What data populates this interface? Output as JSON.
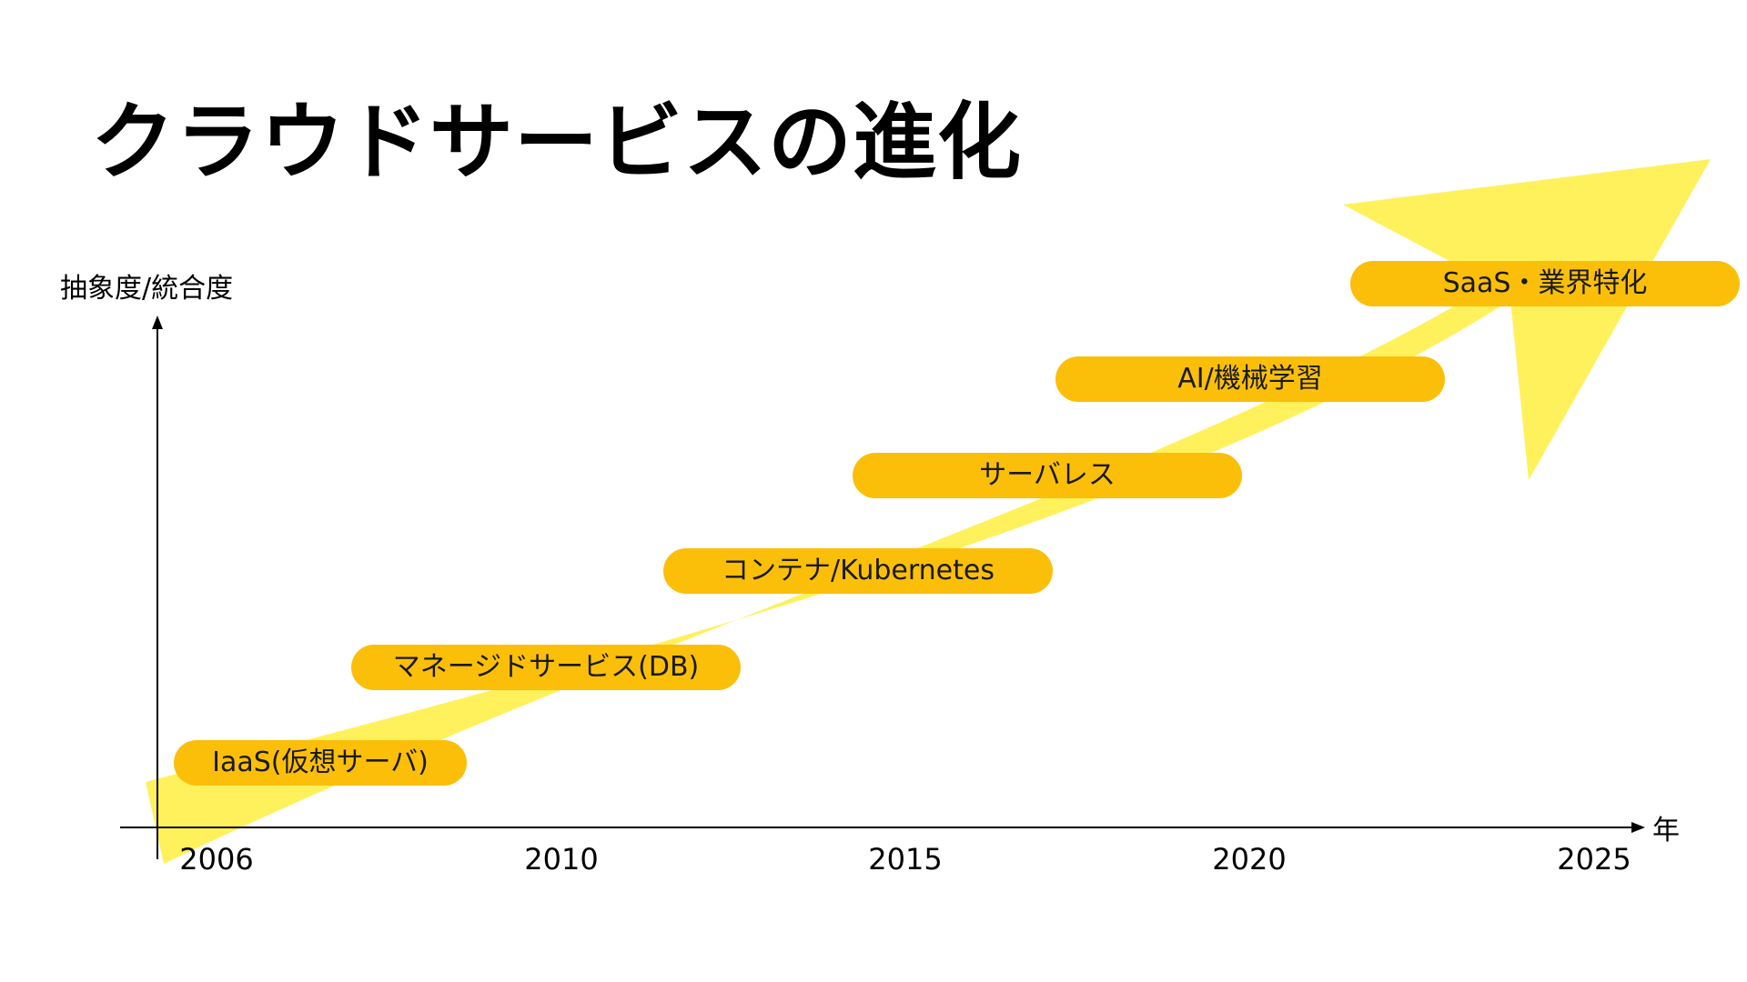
{
  "title": "クラウドサービスの進化",
  "axes": {
    "y_label": "抽象度/統合度",
    "x_label": "年",
    "years": [
      "2006",
      "2010",
      "2015",
      "2020",
      "2025"
    ]
  },
  "stages": [
    {
      "label": "IaaS(仮想サーバ)",
      "year": 2006
    },
    {
      "label": "マネージドサービス(DB)",
      "year": 2009
    },
    {
      "label": "コンテナ/Kubernetes",
      "year": 2012
    },
    {
      "label": "サーバレス",
      "year": 2015
    },
    {
      "label": "AI/機械学習",
      "year": 2018
    },
    {
      "label": "SaaS・業界特化",
      "year": 2022
    }
  ],
  "colors": {
    "arrow": "#fff15c",
    "pill": "#fbbf0a",
    "text": "#000000"
  }
}
